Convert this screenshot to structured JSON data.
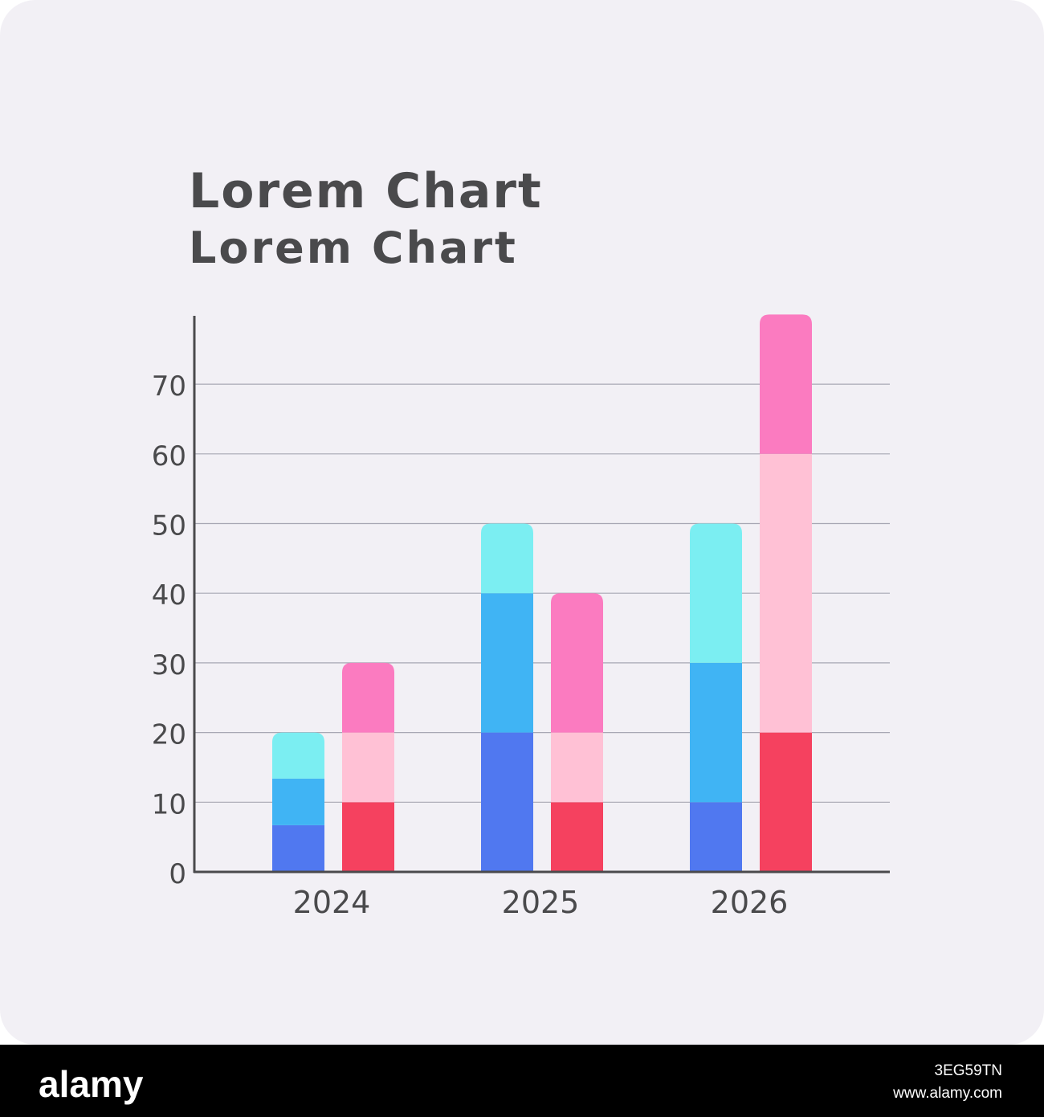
{
  "title": "Lorem Chart",
  "subtitle": "Lorem Chart",
  "footer": {
    "brand": "alamy",
    "image_id": "3EG59TN",
    "url": "www.alamy.com"
  },
  "chart_data": {
    "type": "bar",
    "stacked": true,
    "title": "Lorem Chart",
    "subtitle": "Lorem Chart",
    "xlabel": "",
    "ylabel": "",
    "categories": [
      "2024",
      "2025",
      "2026"
    ],
    "ylim": [
      0,
      80
    ],
    "yticks": [
      0,
      10,
      20,
      30,
      40,
      50,
      60,
      70
    ],
    "grid": true,
    "legend": "none",
    "stacks": [
      {
        "segments": [
          {
            "color": "#5078f0",
            "values": [
              6.7,
              20,
              10
            ]
          },
          {
            "color": "#40b4f4",
            "values": [
              6.7,
              20,
              20
            ]
          },
          {
            "color": "#7beef2",
            "values": [
              6.6,
              10,
              20
            ]
          }
        ]
      },
      {
        "segments": [
          {
            "color": "#f5415f",
            "values": [
              10,
              10,
              20
            ]
          },
          {
            "color": "#ffc1d5",
            "values": [
              10,
              10,
              40
            ]
          },
          {
            "color": "#fb7bc0",
            "values": [
              10,
              20,
              20
            ]
          }
        ]
      }
    ],
    "colors": {
      "axis": "#4a4a4c",
      "gridline": "#a8a8b4"
    }
  }
}
